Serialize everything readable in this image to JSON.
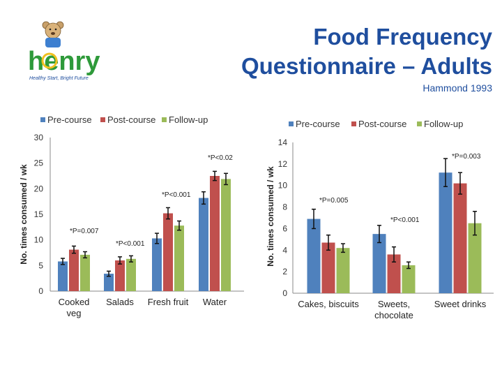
{
  "header": {
    "title_line1": "Food Frequency",
    "title_line2": "Questionnaire – Adults",
    "citation": "Hammond 1993",
    "logo_text": "henry",
    "logo_tagline": "Healthy Start, Bright Future"
  },
  "colors": {
    "title": "#1f4e9e",
    "pre_course": "#4f81bd",
    "post_course": "#c0504d",
    "follow_up": "#9bbb59",
    "axis": "#888888"
  },
  "chart_data": [
    {
      "type": "bar",
      "categories": [
        "Cooked veg",
        "Salads",
        "Fresh fruit",
        "Water"
      ],
      "series": [
        {
          "name": "Pre-course",
          "values": [
            5.8,
            3.4,
            10.3,
            18.2
          ],
          "errors": [
            0.6,
            0.5,
            1.0,
            1.2
          ]
        },
        {
          "name": "Post-course",
          "values": [
            8.1,
            6.0,
            15.2,
            22.5
          ],
          "errors": [
            0.7,
            0.7,
            1.1,
            0.9
          ]
        },
        {
          "name": "Follow-up",
          "values": [
            7.1,
            6.3,
            12.8,
            21.9
          ],
          "errors": [
            0.6,
            0.6,
            0.9,
            1.1
          ]
        }
      ],
      "ylabel": "No. times consumed / wk",
      "ylim": [
        0,
        30
      ],
      "yticks": [
        0,
        5,
        10,
        15,
        20,
        25,
        30
      ],
      "annotations": [
        {
          "category": "Cooked veg",
          "text": "*P=0.007"
        },
        {
          "category": "Salads",
          "text": "*P<0.001"
        },
        {
          "category": "Fresh fruit",
          "text": "*P<0.001"
        },
        {
          "category": "Water",
          "text": "*P<0.02"
        }
      ],
      "legend": "top"
    },
    {
      "type": "bar",
      "categories": [
        "Cakes, biscuits",
        "Sweets, chocolate",
        "Sweet drinks"
      ],
      "series": [
        {
          "name": "Pre-course",
          "values": [
            6.9,
            5.5,
            11.2
          ],
          "errors": [
            0.9,
            0.8,
            1.3
          ]
        },
        {
          "name": "Post-course",
          "values": [
            4.7,
            3.6,
            10.2
          ],
          "errors": [
            0.7,
            0.7,
            1.0
          ]
        },
        {
          "name": "Follow-up",
          "values": [
            4.2,
            2.6,
            6.5
          ],
          "errors": [
            0.4,
            0.3,
            1.1
          ]
        }
      ],
      "ylabel": "No. times consumed / wk",
      "ylim": [
        0,
        14
      ],
      "yticks": [
        0,
        2,
        4,
        6,
        8,
        10,
        12,
        14
      ],
      "annotations": [
        {
          "category": "Cakes, biscuits",
          "text": "*P=0.005"
        },
        {
          "category": "Sweets, chocolate",
          "text": "*P<0.001"
        },
        {
          "category": "Sweet drinks",
          "text": "*P=0.003"
        }
      ],
      "legend": "top"
    }
  ]
}
